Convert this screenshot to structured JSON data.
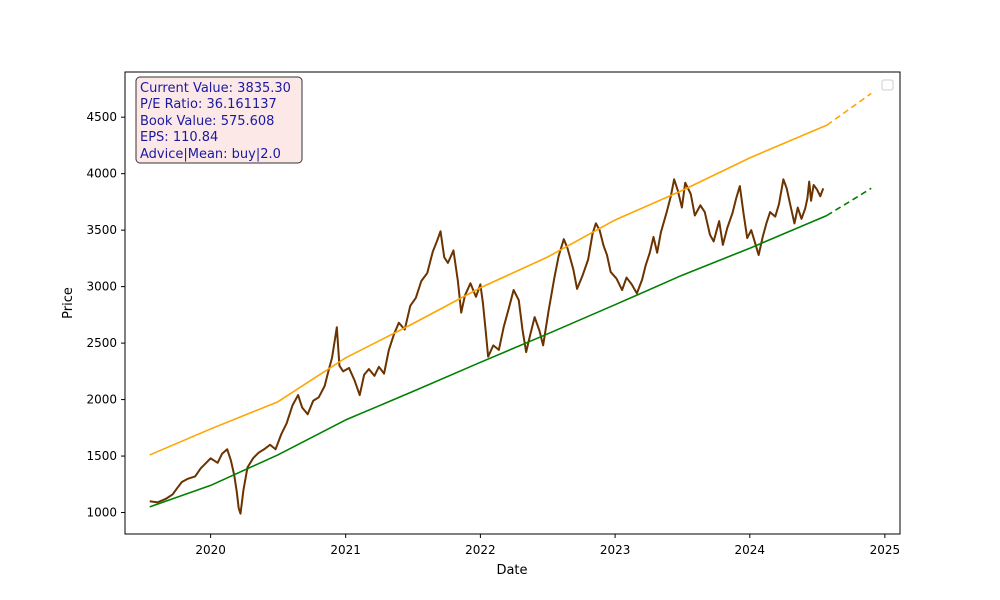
{
  "chart_data": {
    "type": "line",
    "title": "",
    "xlabel": "Date",
    "ylabel": "Price",
    "xlim": [
      "2019-05-14",
      "2025-02-11"
    ],
    "ylim": [
      810,
      4900
    ],
    "x_ticks": [
      "2020",
      "2021",
      "2022",
      "2023",
      "2024",
      "2025"
    ],
    "y_ticks": [
      1000,
      1500,
      2000,
      2500,
      3000,
      3500,
      4000,
      4500
    ],
    "grid": false,
    "legend": {
      "placement": "top-right",
      "entries": []
    },
    "info_box": {
      "lines": [
        "Current Value: 3835.30",
        "P/E Ratio: 36.161137",
        "Book Value: 575.608",
        "EPS: 110.84",
        "Advice|Mean: buy|2.0"
      ],
      "text_color": "#1a1aa0",
      "background": "#fde8e8",
      "border": "#333333"
    },
    "series": [
      {
        "color": "#6b3300",
        "style": "solid",
        "points": [
          [
            "2019-07-20",
            1100
          ],
          [
            "2019-08-10",
            1090
          ],
          [
            "2019-09-01",
            1120
          ],
          [
            "2019-09-20",
            1160
          ],
          [
            "2019-10-01",
            1210
          ],
          [
            "2019-10-15",
            1270
          ],
          [
            "2019-11-01",
            1300
          ],
          [
            "2019-11-20",
            1320
          ],
          [
            "2019-12-05",
            1390
          ],
          [
            "2019-12-20",
            1440
          ],
          [
            "2020-01-01",
            1480
          ],
          [
            "2020-01-20",
            1440
          ],
          [
            "2020-02-01",
            1520
          ],
          [
            "2020-02-15",
            1560
          ],
          [
            "2020-02-25",
            1460
          ],
          [
            "2020-03-05",
            1330
          ],
          [
            "2020-03-12",
            1180
          ],
          [
            "2020-03-17",
            1040
          ],
          [
            "2020-03-22",
            990
          ],
          [
            "2020-03-30",
            1200
          ],
          [
            "2020-04-10",
            1400
          ],
          [
            "2020-04-25",
            1480
          ],
          [
            "2020-05-10",
            1530
          ],
          [
            "2020-05-25",
            1560
          ],
          [
            "2020-06-10",
            1600
          ],
          [
            "2020-06-25",
            1560
          ],
          [
            "2020-07-10",
            1690
          ],
          [
            "2020-07-25",
            1790
          ],
          [
            "2020-08-10",
            1950
          ],
          [
            "2020-08-25",
            2040
          ],
          [
            "2020-09-05",
            1930
          ],
          [
            "2020-09-20",
            1870
          ],
          [
            "2020-10-05",
            1990
          ],
          [
            "2020-10-20",
            2020
          ],
          [
            "2020-11-05",
            2120
          ],
          [
            "2020-11-15",
            2250
          ],
          [
            "2020-11-25",
            2370
          ],
          [
            "2020-12-08",
            2640
          ],
          [
            "2020-12-15",
            2300
          ],
          [
            "2020-12-25",
            2250
          ],
          [
            "2021-01-10",
            2280
          ],
          [
            "2021-01-25",
            2170
          ],
          [
            "2021-02-08",
            2040
          ],
          [
            "2021-02-20",
            2220
          ],
          [
            "2021-03-05",
            2270
          ],
          [
            "2021-03-20",
            2210
          ],
          [
            "2021-04-01",
            2290
          ],
          [
            "2021-04-15",
            2230
          ],
          [
            "2021-04-28",
            2440
          ],
          [
            "2021-05-12",
            2580
          ],
          [
            "2021-05-25",
            2680
          ],
          [
            "2021-06-10",
            2620
          ],
          [
            "2021-06-25",
            2830
          ],
          [
            "2021-07-10",
            2900
          ],
          [
            "2021-07-25",
            3050
          ],
          [
            "2021-08-10",
            3120
          ],
          [
            "2021-08-25",
            3310
          ],
          [
            "2021-09-05",
            3400
          ],
          [
            "2021-09-15",
            3490
          ],
          [
            "2021-09-25",
            3260
          ],
          [
            "2021-10-05",
            3210
          ],
          [
            "2021-10-20",
            3320
          ],
          [
            "2021-11-01",
            3050
          ],
          [
            "2021-11-10",
            2770
          ],
          [
            "2021-11-20",
            2920
          ],
          [
            "2021-12-05",
            3030
          ],
          [
            "2021-12-20",
            2910
          ],
          [
            "2022-01-01",
            3020
          ],
          [
            "2022-01-08",
            2850
          ],
          [
            "2022-01-15",
            2620
          ],
          [
            "2022-01-22",
            2380
          ],
          [
            "2022-02-05",
            2480
          ],
          [
            "2022-02-20",
            2440
          ],
          [
            "2022-03-05",
            2640
          ],
          [
            "2022-03-20",
            2820
          ],
          [
            "2022-04-01",
            2970
          ],
          [
            "2022-04-15",
            2880
          ],
          [
            "2022-04-25",
            2620
          ],
          [
            "2022-05-05",
            2420
          ],
          [
            "2022-05-15",
            2560
          ],
          [
            "2022-05-28",
            2730
          ],
          [
            "2022-06-10",
            2610
          ],
          [
            "2022-06-20",
            2480
          ],
          [
            "2022-07-05",
            2790
          ],
          [
            "2022-07-20",
            3070
          ],
          [
            "2022-08-01",
            3270
          ],
          [
            "2022-08-15",
            3420
          ],
          [
            "2022-08-25",
            3340
          ],
          [
            "2022-09-10",
            3150
          ],
          [
            "2022-09-20",
            2980
          ],
          [
            "2022-10-05",
            3100
          ],
          [
            "2022-10-20",
            3240
          ],
          [
            "2022-11-01",
            3470
          ],
          [
            "2022-11-10",
            3560
          ],
          [
            "2022-11-20",
            3500
          ],
          [
            "2022-12-01",
            3360
          ],
          [
            "2022-12-10",
            3280
          ],
          [
            "2022-12-20",
            3130
          ],
          [
            "2023-01-05",
            3070
          ],
          [
            "2023-01-20",
            2970
          ],
          [
            "2023-02-01",
            3080
          ],
          [
            "2023-02-15",
            3020
          ],
          [
            "2023-03-01",
            2940
          ],
          [
            "2023-03-15",
            3060
          ],
          [
            "2023-03-25",
            3190
          ],
          [
            "2023-04-05",
            3300
          ],
          [
            "2023-04-15",
            3440
          ],
          [
            "2023-04-25",
            3300
          ],
          [
            "2023-05-05",
            3480
          ],
          [
            "2023-05-20",
            3650
          ],
          [
            "2023-06-01",
            3800
          ],
          [
            "2023-06-10",
            3950
          ],
          [
            "2023-06-20",
            3850
          ],
          [
            "2023-07-01",
            3700
          ],
          [
            "2023-07-10",
            3920
          ],
          [
            "2023-07-25",
            3820
          ],
          [
            "2023-08-05",
            3630
          ],
          [
            "2023-08-20",
            3720
          ],
          [
            "2023-09-01",
            3660
          ],
          [
            "2023-09-15",
            3460
          ],
          [
            "2023-09-25",
            3400
          ],
          [
            "2023-10-10",
            3580
          ],
          [
            "2023-10-20",
            3370
          ],
          [
            "2023-11-01",
            3520
          ],
          [
            "2023-11-15",
            3650
          ],
          [
            "2023-11-25",
            3780
          ],
          [
            "2023-12-05",
            3890
          ],
          [
            "2023-12-15",
            3650
          ],
          [
            "2023-12-25",
            3430
          ],
          [
            "2024-01-05",
            3500
          ],
          [
            "2024-01-15",
            3390
          ],
          [
            "2024-01-25",
            3280
          ],
          [
            "2024-02-05",
            3440
          ],
          [
            "2024-02-15",
            3560
          ],
          [
            "2024-02-25",
            3660
          ],
          [
            "2024-03-10",
            3620
          ],
          [
            "2024-03-20",
            3730
          ],
          [
            "2024-04-01",
            3950
          ],
          [
            "2024-04-10",
            3870
          ],
          [
            "2024-04-20",
            3720
          ],
          [
            "2024-05-01",
            3560
          ],
          [
            "2024-05-10",
            3700
          ],
          [
            "2024-05-20",
            3600
          ],
          [
            "2024-05-30",
            3690
          ],
          [
            "2024-06-05",
            3780
          ],
          [
            "2024-06-10",
            3930
          ],
          [
            "2024-06-15",
            3760
          ],
          [
            "2024-06-22",
            3900
          ],
          [
            "2024-07-01",
            3860
          ],
          [
            "2024-07-10",
            3800
          ],
          [
            "2024-07-18",
            3870
          ]
        ]
      },
      {
        "color": "#ffa500",
        "style": "solid",
        "points": [
          [
            "2019-07-20",
            1510
          ],
          [
            "2020-01-01",
            1740
          ],
          [
            "2020-07-01",
            1980
          ],
          [
            "2021-01-01",
            2370
          ],
          [
            "2021-07-01",
            2670
          ],
          [
            "2022-01-01",
            2990
          ],
          [
            "2022-07-01",
            3260
          ],
          [
            "2023-01-01",
            3590
          ],
          [
            "2023-07-01",
            3850
          ],
          [
            "2024-01-01",
            4140
          ],
          [
            "2024-07-28",
            4430
          ]
        ]
      },
      {
        "color": "#ffa500",
        "style": "dashed",
        "points": [
          [
            "2024-07-28",
            4430
          ],
          [
            "2024-11-25",
            4710
          ]
        ]
      },
      {
        "color": "#008000",
        "style": "solid",
        "points": [
          [
            "2019-07-20",
            1050
          ],
          [
            "2020-01-01",
            1240
          ],
          [
            "2020-07-01",
            1510
          ],
          [
            "2021-01-01",
            1820
          ],
          [
            "2021-07-01",
            2070
          ],
          [
            "2022-01-01",
            2330
          ],
          [
            "2022-07-01",
            2580
          ],
          [
            "2023-01-01",
            2840
          ],
          [
            "2023-07-01",
            3100
          ],
          [
            "2024-01-01",
            3340
          ],
          [
            "2024-07-28",
            3630
          ]
        ]
      },
      {
        "color": "#008000",
        "style": "dashed",
        "points": [
          [
            "2024-07-28",
            3630
          ],
          [
            "2024-11-25",
            3870
          ]
        ]
      }
    ]
  }
}
